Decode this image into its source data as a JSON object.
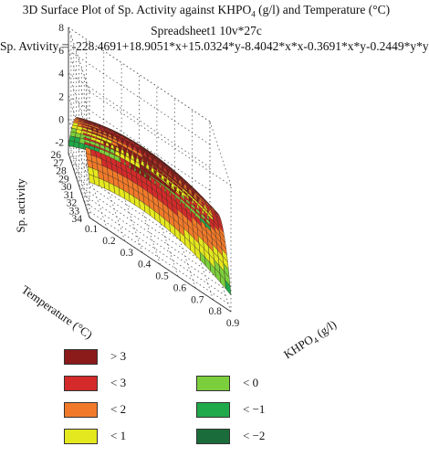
{
  "chart_data": {
    "type": "surface3d",
    "title": "3D Surface Plot of Sp. Activity against KHPO",
    "title_sub": "4",
    "title_tail": " (g/l) and Temperature (°C)",
    "subtitle": "Spreadsheet1 10v*27c",
    "equation": "Sp. Avtivity = -228.4691+18.9051*x+15.0324*y-8.4042*x*x-0.3691*x*y-0.2449*y*y",
    "xlabel": "KHPO",
    "xlabel_sub": "4",
    "xlabel_tail": " (g/l)",
    "ylabel": "Temperature (°C)",
    "zlabel": "Sp. activity",
    "x_ticks": [
      "0.1",
      "0.2",
      "0.3",
      "0.4",
      "0.5",
      "0.6",
      "0.7",
      "0.8",
      "0.9"
    ],
    "y_ticks": [
      "26",
      "27",
      "28",
      "29",
      "30",
      "31",
      "32",
      "33",
      "34"
    ],
    "z_ticks": [
      "-2",
      "0",
      "2",
      "4",
      "6",
      "8"
    ],
    "xlim": [
      0.1,
      0.9
    ],
    "ylim": [
      26,
      34
    ],
    "zlim": [
      -3,
      8
    ],
    "coefficients": {
      "c": -228.4691,
      "x": 18.9051,
      "y": 15.0324,
      "xx": -8.4042,
      "xy": -0.3691,
      "yy": -0.2449
    },
    "grid": true,
    "legend_position": "bottom",
    "legend": [
      {
        "label": "> 3",
        "color": "#8b1a1a"
      },
      {
        "label": "< 3",
        "color": "#d42a2a"
      },
      {
        "label": "< 2",
        "color": "#f07a2a"
      },
      {
        "label": "< 1",
        "color": "#e4e81e"
      },
      {
        "label": "< 0",
        "color": "#7ccf3c"
      },
      {
        "label": "< −1",
        "color": "#1fa94a"
      },
      {
        "label": "< −2",
        "color": "#1a6d3a"
      }
    ]
  }
}
